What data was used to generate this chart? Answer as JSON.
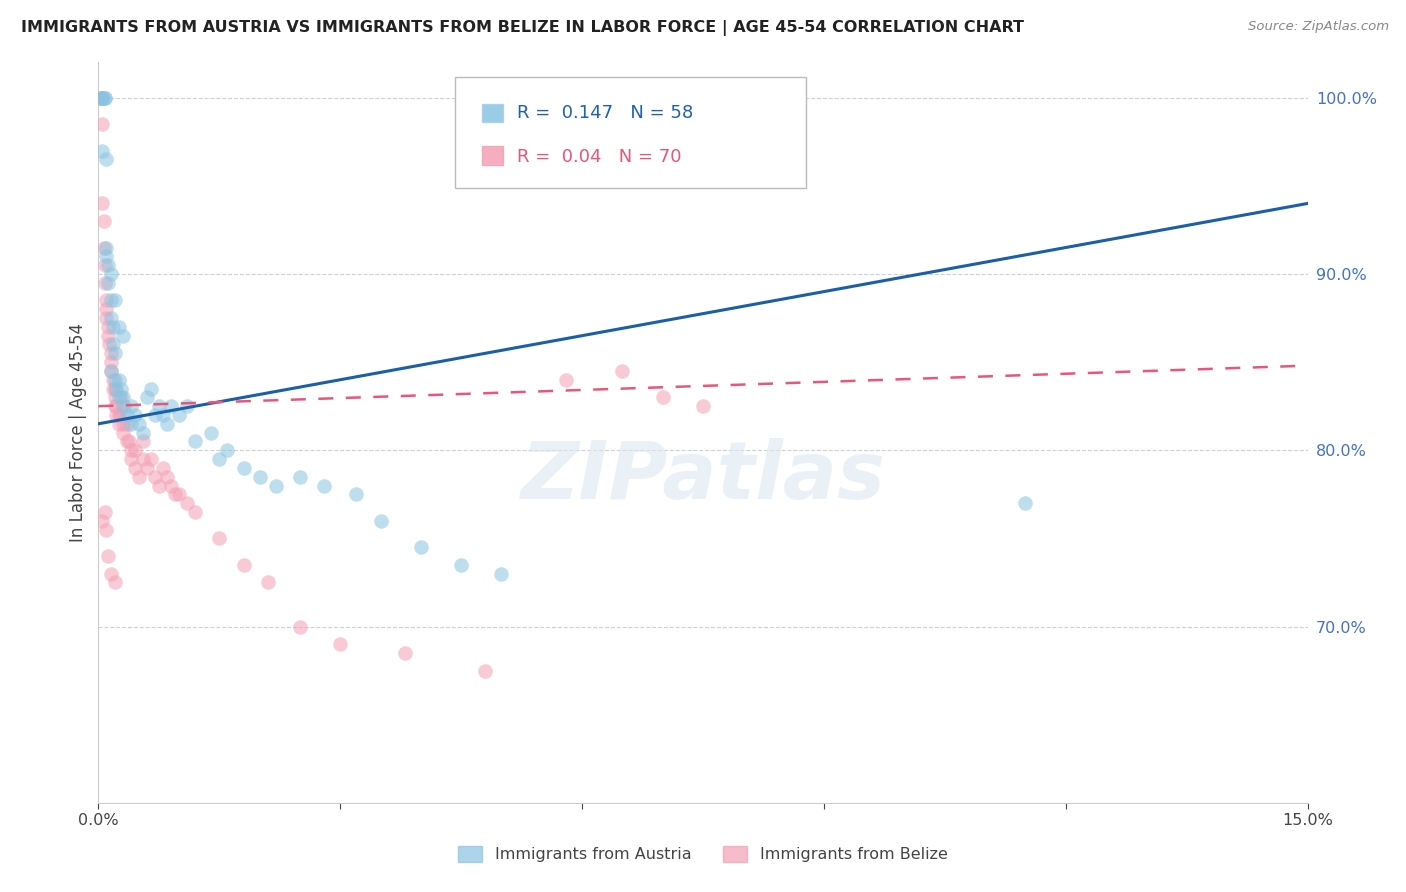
{
  "title": "IMMIGRANTS FROM AUSTRIA VS IMMIGRANTS FROM BELIZE IN LABOR FORCE | AGE 45-54 CORRELATION CHART",
  "source": "Source: ZipAtlas.com",
  "ylabel": "In Labor Force | Age 45-54",
  "xlim": [
    0.0,
    15.0
  ],
  "ylim": [
    60.0,
    102.0
  ],
  "x_tick_positions": [
    0.0,
    3.0,
    6.0,
    9.0,
    12.0,
    15.0
  ],
  "x_tick_labels": [
    "0.0%",
    "",
    "",
    "",
    "",
    "15.0%"
  ],
  "y_ticks_right": [
    70.0,
    80.0,
    90.0,
    100.0
  ],
  "y_tick_labels_right": [
    "70.0%",
    "80.0%",
    "90.0%",
    "100.0%"
  ],
  "legend_austria": "Immigrants from Austria",
  "legend_belize": "Immigrants from Belize",
  "R_austria": 0.147,
  "N_austria": 58,
  "R_belize": 0.04,
  "N_belize": 70,
  "color_austria": "#89c4e1",
  "color_belize": "#f4a0b5",
  "line_color_austria": "#1a5fa8",
  "line_color_belize": "#e8567a",
  "watermark": "ZIPatlas",
  "austria_x": [
    0.05,
    0.05,
    0.05,
    0.08,
    0.08,
    0.1,
    0.1,
    0.12,
    0.12,
    0.15,
    0.15,
    0.15,
    0.18,
    0.18,
    0.2,
    0.2,
    0.22,
    0.25,
    0.25,
    0.28,
    0.3,
    0.3,
    0.35,
    0.4,
    0.4,
    0.45,
    0.5,
    0.55,
    0.6,
    0.65,
    0.7,
    0.75,
    0.8,
    0.85,
    0.9,
    1.0,
    1.1,
    1.2,
    1.4,
    1.5,
    1.6,
    1.8,
    2.0,
    2.2,
    2.5,
    2.8,
    3.2,
    3.5,
    4.0,
    4.5,
    5.0,
    0.05,
    0.1,
    0.15,
    0.2,
    0.25,
    0.3,
    11.5
  ],
  "austria_y": [
    100.0,
    100.0,
    100.0,
    100.0,
    100.0,
    96.5,
    91.0,
    90.5,
    89.5,
    88.5,
    87.5,
    84.5,
    87.0,
    86.0,
    85.5,
    84.0,
    83.5,
    83.0,
    84.0,
    83.5,
    83.0,
    82.5,
    82.0,
    82.5,
    81.5,
    82.0,
    81.5,
    81.0,
    83.0,
    83.5,
    82.0,
    82.5,
    82.0,
    81.5,
    82.5,
    82.0,
    82.5,
    80.5,
    81.0,
    79.5,
    80.0,
    79.0,
    78.5,
    78.0,
    78.5,
    78.0,
    77.5,
    76.0,
    74.5,
    73.5,
    73.0,
    97.0,
    91.5,
    90.0,
    88.5,
    87.0,
    86.5,
    77.0
  ],
  "belize_x": [
    0.02,
    0.03,
    0.05,
    0.05,
    0.05,
    0.07,
    0.07,
    0.08,
    0.08,
    0.1,
    0.1,
    0.1,
    0.12,
    0.12,
    0.13,
    0.15,
    0.15,
    0.15,
    0.18,
    0.18,
    0.2,
    0.2,
    0.2,
    0.22,
    0.22,
    0.25,
    0.25,
    0.28,
    0.28,
    0.3,
    0.3,
    0.32,
    0.35,
    0.35,
    0.38,
    0.4,
    0.4,
    0.45,
    0.45,
    0.5,
    0.55,
    0.55,
    0.6,
    0.65,
    0.7,
    0.75,
    0.8,
    0.85,
    0.9,
    0.95,
    1.0,
    1.1,
    1.2,
    1.5,
    1.8,
    2.1,
    2.5,
    3.0,
    3.8,
    4.8,
    0.05,
    0.08,
    0.1,
    0.12,
    0.15,
    0.2,
    5.8,
    6.5,
    7.0,
    7.5
  ],
  "belize_y": [
    100.0,
    100.0,
    100.0,
    98.5,
    94.0,
    93.0,
    91.5,
    90.5,
    89.5,
    88.5,
    88.0,
    87.5,
    87.0,
    86.5,
    86.0,
    85.5,
    85.0,
    84.5,
    84.0,
    83.5,
    83.5,
    83.0,
    82.5,
    82.5,
    82.0,
    82.0,
    81.5,
    83.0,
    82.0,
    81.5,
    81.0,
    82.5,
    81.5,
    80.5,
    80.5,
    80.0,
    79.5,
    80.0,
    79.0,
    78.5,
    80.5,
    79.5,
    79.0,
    79.5,
    78.5,
    78.0,
    79.0,
    78.5,
    78.0,
    77.5,
    77.5,
    77.0,
    76.5,
    75.0,
    73.5,
    72.5,
    70.0,
    69.0,
    68.5,
    67.5,
    76.0,
    76.5,
    75.5,
    74.0,
    73.0,
    72.5,
    84.0,
    84.5,
    83.0,
    82.5
  ],
  "trend_austria_x0": 0.0,
  "trend_austria_y0": 81.5,
  "trend_austria_x1": 15.0,
  "trend_austria_y1": 94.0,
  "trend_belize_x0": 0.0,
  "trend_belize_y0": 82.5,
  "trend_belize_x1": 15.0,
  "trend_belize_y1": 84.8
}
